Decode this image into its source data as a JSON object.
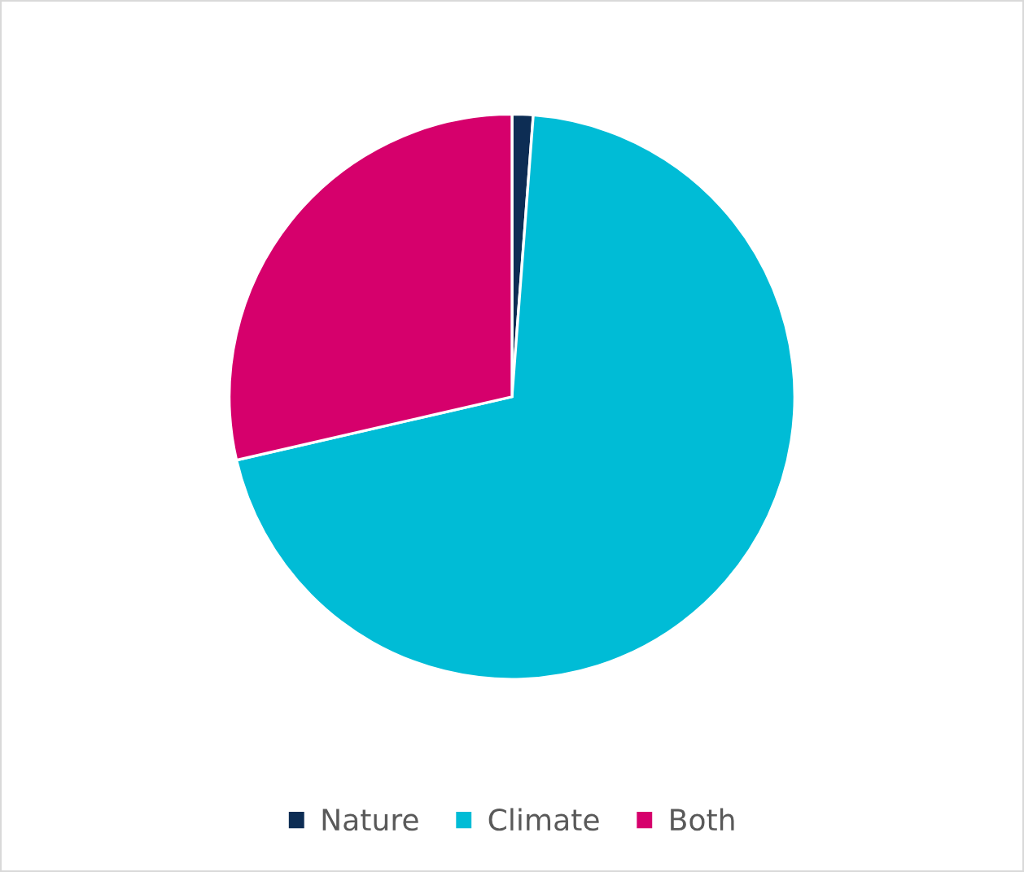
{
  "chart_data": {
    "type": "pie",
    "categories": [
      "Nature",
      "Climate",
      "Both"
    ],
    "values": [
      1.2,
      70.2,
      28.6
    ],
    "colors": [
      "#0d2d54",
      "#00bcd6",
      "#d6006c"
    ],
    "legend": "bottom"
  }
}
